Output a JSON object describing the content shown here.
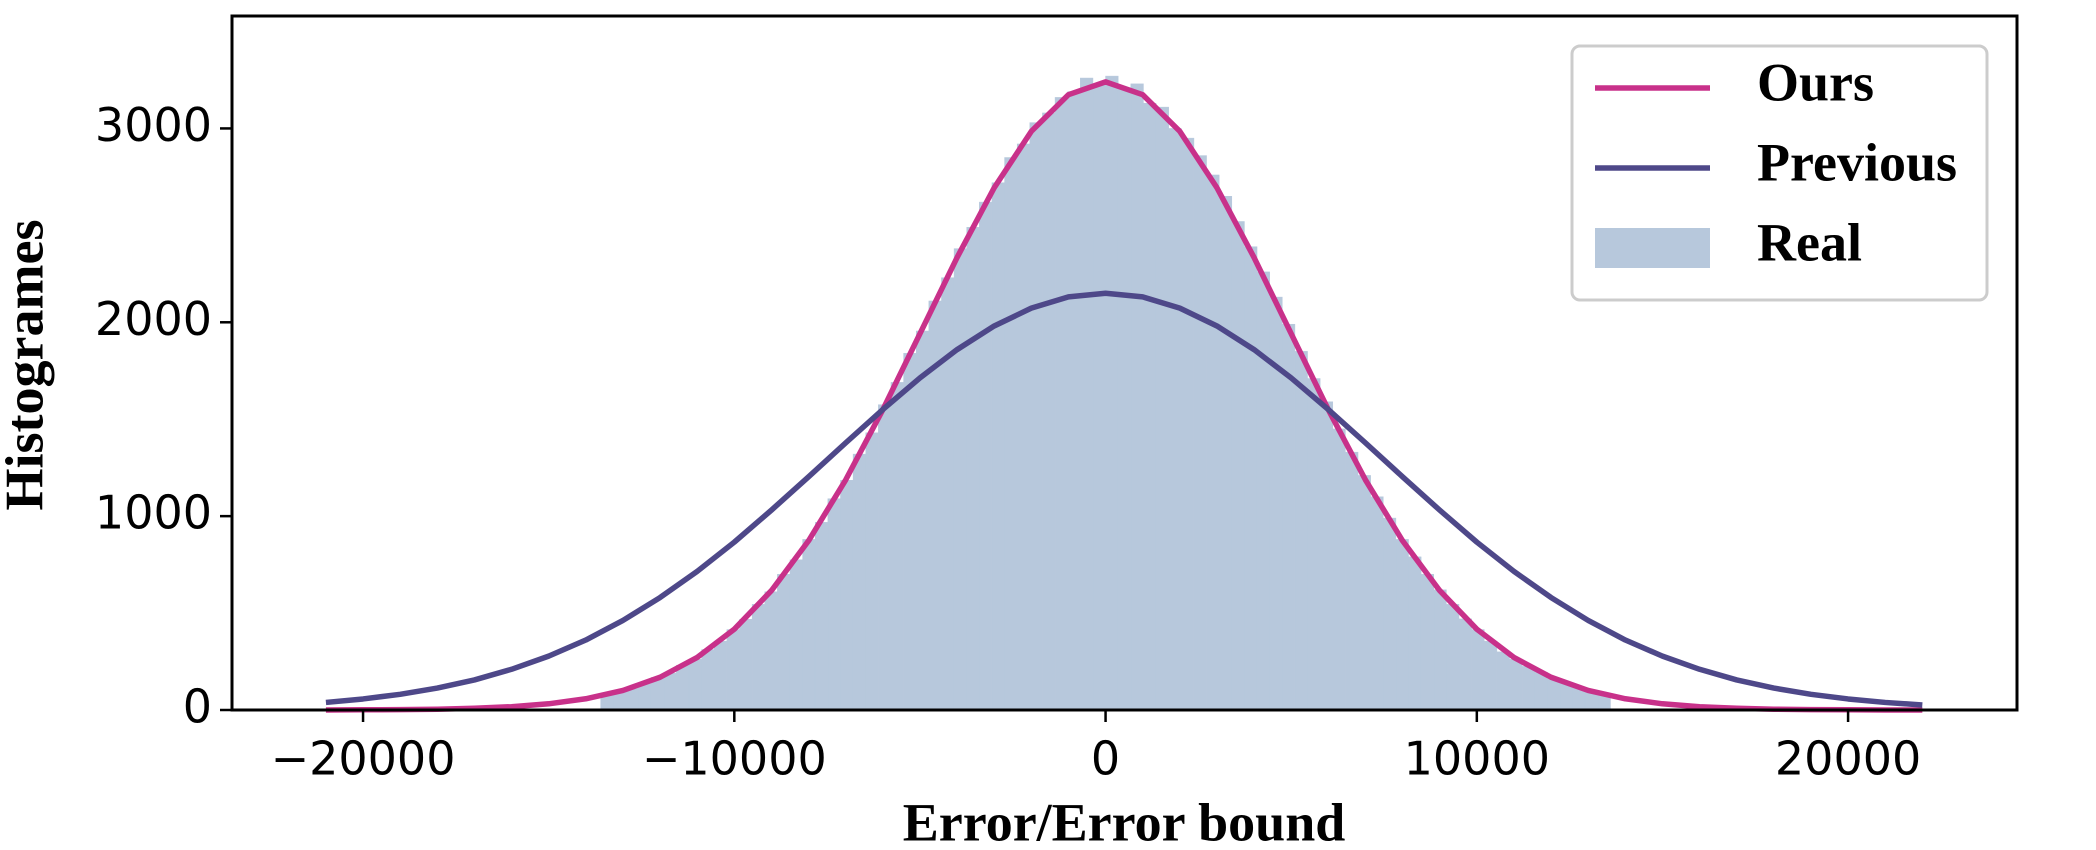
{
  "chart_data": {
    "type": "histogram",
    "xlabel": "Error/Error bound",
    "ylabel": "Histogrames",
    "xlim": [
      -23530,
      24550
    ],
    "ylim": [
      0,
      3580
    ],
    "xticks": [
      {
        "value": -20000,
        "label": "−20000"
      },
      {
        "value": -10000,
        "label": "−10000"
      },
      0,
      10000,
      20000
    ],
    "yticks": [
      0,
      1000,
      2000,
      3000
    ],
    "legend": "upper right",
    "histogram": {
      "name": "Real",
      "color": "#b7c8dc",
      "bins": [
        -13600,
        -13260,
        -12920,
        -12580,
        -12240,
        -11900,
        -11560,
        -11220,
        -10880,
        -10540,
        -10200,
        -9860,
        -9520,
        -9180,
        -8840,
        -8500,
        -8160,
        -7820,
        -7480,
        -7140,
        -6800,
        -6460,
        -6120,
        -5780,
        -5440,
        -5100,
        -4760,
        -4420,
        -4080,
        -3740,
        -3400,
        -3060,
        -2720,
        -2380,
        -2040,
        -1700,
        -1360,
        -1020,
        -680,
        -340,
        0,
        340,
        680,
        1020,
        1360,
        1700,
        2040,
        2380,
        2720,
        3060,
        3400,
        3740,
        4080,
        4420,
        4760,
        5100,
        5440,
        5780,
        6120,
        6460,
        6800,
        7140,
        7480,
        7820,
        8160,
        8500,
        8840,
        9180,
        9520,
        9860,
        10200,
        10540,
        10880,
        11220,
        11560,
        11900,
        12240,
        12580,
        12920,
        13260,
        13600
      ],
      "values": [
        82,
        95,
        118,
        135,
        168,
        190,
        231,
        262,
        312,
        355,
        415,
        468,
        545,
        610,
        700,
        775,
        880,
        968,
        1090,
        1185,
        1320,
        1430,
        1575,
        1690,
        1840,
        1955,
        2110,
        2230,
        2380,
        2490,
        2620,
        2720,
        2850,
        2920,
        3030,
        3080,
        3160,
        3190,
        3260,
        3230,
        3270,
        3210,
        3230,
        3130,
        3110,
        3000,
        2950,
        2860,
        2760,
        2650,
        2520,
        2390,
        2260,
        2130,
        1990,
        1850,
        1710,
        1590,
        1450,
        1330,
        1210,
        1100,
        990,
        880,
        790,
        700,
        620,
        545,
        470,
        415,
        355,
        300,
        262,
        225,
        195,
        160,
        140,
        112,
        96,
        78
      ]
    },
    "x": [
      -21000,
      -20000,
      -19000,
      -18000,
      -17000,
      -16000,
      -15000,
      -14000,
      -13000,
      -12000,
      -11000,
      -10000,
      -9000,
      -8000,
      -7000,
      -6000,
      -5000,
      -4000,
      -3000,
      -2000,
      -1000,
      0,
      1000,
      2000,
      3000,
      4000,
      5000,
      6000,
      7000,
      8000,
      9000,
      10000,
      11000,
      12000,
      13000,
      14000,
      15000,
      16000,
      17000,
      18000,
      19000,
      20000,
      21000,
      22000
    ],
    "series": [
      {
        "name": "Ours",
        "color": "#c8318a",
        "values": [
          0,
          1,
          2,
          4,
          9,
          17,
          32,
          58,
          101,
          169,
          271,
          417,
          616,
          873,
          1187,
          1549,
          1941,
          2334,
          2694,
          2985,
          3174,
          3240,
          3174,
          2985,
          2694,
          2334,
          1941,
          1549,
          1187,
          873,
          616,
          417,
          271,
          169,
          101,
          58,
          32,
          17,
          9,
          4,
          2,
          1,
          0,
          0
        ]
      },
      {
        "name": "Previous",
        "color": "#4e4889",
        "values": [
          39,
          57,
          81,
          113,
          155,
          210,
          278,
          361,
          462,
          580,
          715,
          866,
          1031,
          1203,
          1378,
          1550,
          1713,
          1859,
          1981,
          2073,
          2131,
          2150,
          2131,
          2073,
          1981,
          1859,
          1713,
          1550,
          1378,
          1203,
          1031,
          866,
          715,
          580,
          462,
          361,
          278,
          210,
          155,
          113,
          81,
          57,
          39,
          26
        ]
      }
    ]
  }
}
